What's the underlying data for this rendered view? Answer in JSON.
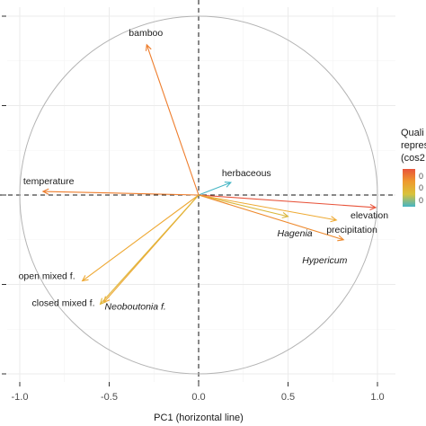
{
  "chart_data": {
    "type": "scatter",
    "subtype": "pca-correlation-circle",
    "xlabel": "PC1 (horizontal line)",
    "ylabel": "",
    "xlim": [
      -1.0,
      1.0
    ],
    "ylim": [
      -1.0,
      1.0
    ],
    "x_ticks": [
      {
        "value": -1.0,
        "label": "-1.0"
      },
      {
        "value": -0.5,
        "label": "-0.5"
      },
      {
        "value": 0.0,
        "label": "0.0"
      },
      {
        "value": 0.5,
        "label": "0.5"
      },
      {
        "value": 1.0,
        "label": "1.0"
      }
    ],
    "y_ticks": [
      -1.0,
      -0.5,
      0.0,
      0.5,
      1.0
    ],
    "grid": true,
    "unit_circle": true,
    "reference_lines": {
      "horizontal": 0,
      "vertical": 0,
      "style": "dashed"
    },
    "variables": [
      {
        "name": "bamboo",
        "x": -0.29,
        "y": 0.84,
        "cos2": 0.79,
        "italic": false,
        "color": "#ee7d2c"
      },
      {
        "name": "herbaceous",
        "x": 0.18,
        "y": 0.07,
        "cos2": 0.04,
        "italic": false,
        "color": "#44b5c4"
      },
      {
        "name": "temperature",
        "x": -0.87,
        "y": 0.02,
        "cos2": 0.76,
        "italic": false,
        "color": "#ee7d2c"
      },
      {
        "name": "elevation",
        "x": 0.99,
        "y": -0.07,
        "cos2": 0.98,
        "italic": false,
        "color": "#e8533a"
      },
      {
        "name": "precipitation",
        "x": 0.77,
        "y": -0.14,
        "cos2": 0.61,
        "italic": false,
        "color": "#eeaa33"
      },
      {
        "name": "Hagenia",
        "x": 0.5,
        "y": -0.12,
        "cos2": 0.27,
        "italic": true,
        "color": "#d9b63a"
      },
      {
        "name": "Hypericum",
        "x": 0.81,
        "y": -0.25,
        "cos2": 0.72,
        "italic": true,
        "color": "#ee8a2e"
      },
      {
        "name": "open mixed f.",
        "x": -0.65,
        "y": -0.48,
        "cos2": 0.65,
        "italic": false,
        "color": "#eea833"
      },
      {
        "name": "closed mixed f.",
        "x": -0.53,
        "y": -0.6,
        "cos2": 0.64,
        "italic": false,
        "color": "#eea833"
      },
      {
        "name": "Neoboutonia f.",
        "x": -0.55,
        "y": -0.61,
        "cos2": 0.67,
        "italic": true,
        "color": "#e0b63a"
      }
    ],
    "legend": {
      "title_lines": [
        "Quali",
        "repres",
        "(cos2"
      ],
      "placement": "right",
      "gradient": [
        "#e8533a",
        "#ee9a2e",
        "#d9c33a",
        "#44b5c4"
      ],
      "tick_labels": [
        "0",
        "0",
        "0"
      ]
    }
  }
}
